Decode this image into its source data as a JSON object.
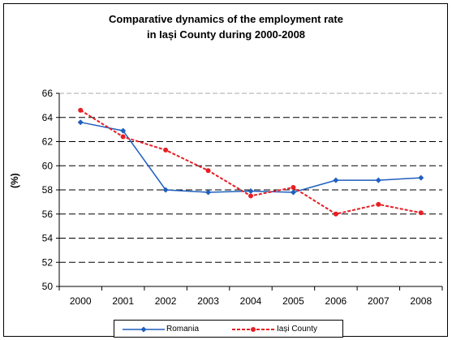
{
  "chart_data": {
    "type": "line",
    "title": "Comparative dynamics of the employment rate",
    "subtitle": "in Iași County during 2000-2008",
    "xlabel": "",
    "ylabel": "(%)",
    "categories": [
      "2000",
      "2001",
      "2002",
      "2003",
      "2004",
      "2005",
      "2006",
      "2007",
      "2008"
    ],
    "ylim": [
      50,
      66
    ],
    "yticks": [
      "50",
      "52",
      "54",
      "56",
      "58",
      "60",
      "62",
      "64",
      "66"
    ],
    "grid": true,
    "legend_position": "bottom",
    "series": [
      {
        "name": "Romania",
        "color": "#1F5FBF",
        "style": "solid",
        "marker": "diamond",
        "values": [
          63.6,
          62.9,
          58.0,
          57.8,
          57.9,
          57.8,
          58.8,
          58.8,
          59.0
        ]
      },
      {
        "name": "Iași County",
        "color": "#E81E24",
        "style": "dashed",
        "marker": "circle",
        "values": [
          64.6,
          62.4,
          61.3,
          59.6,
          57.5,
          58.2,
          56.0,
          56.8,
          56.1
        ]
      }
    ]
  }
}
